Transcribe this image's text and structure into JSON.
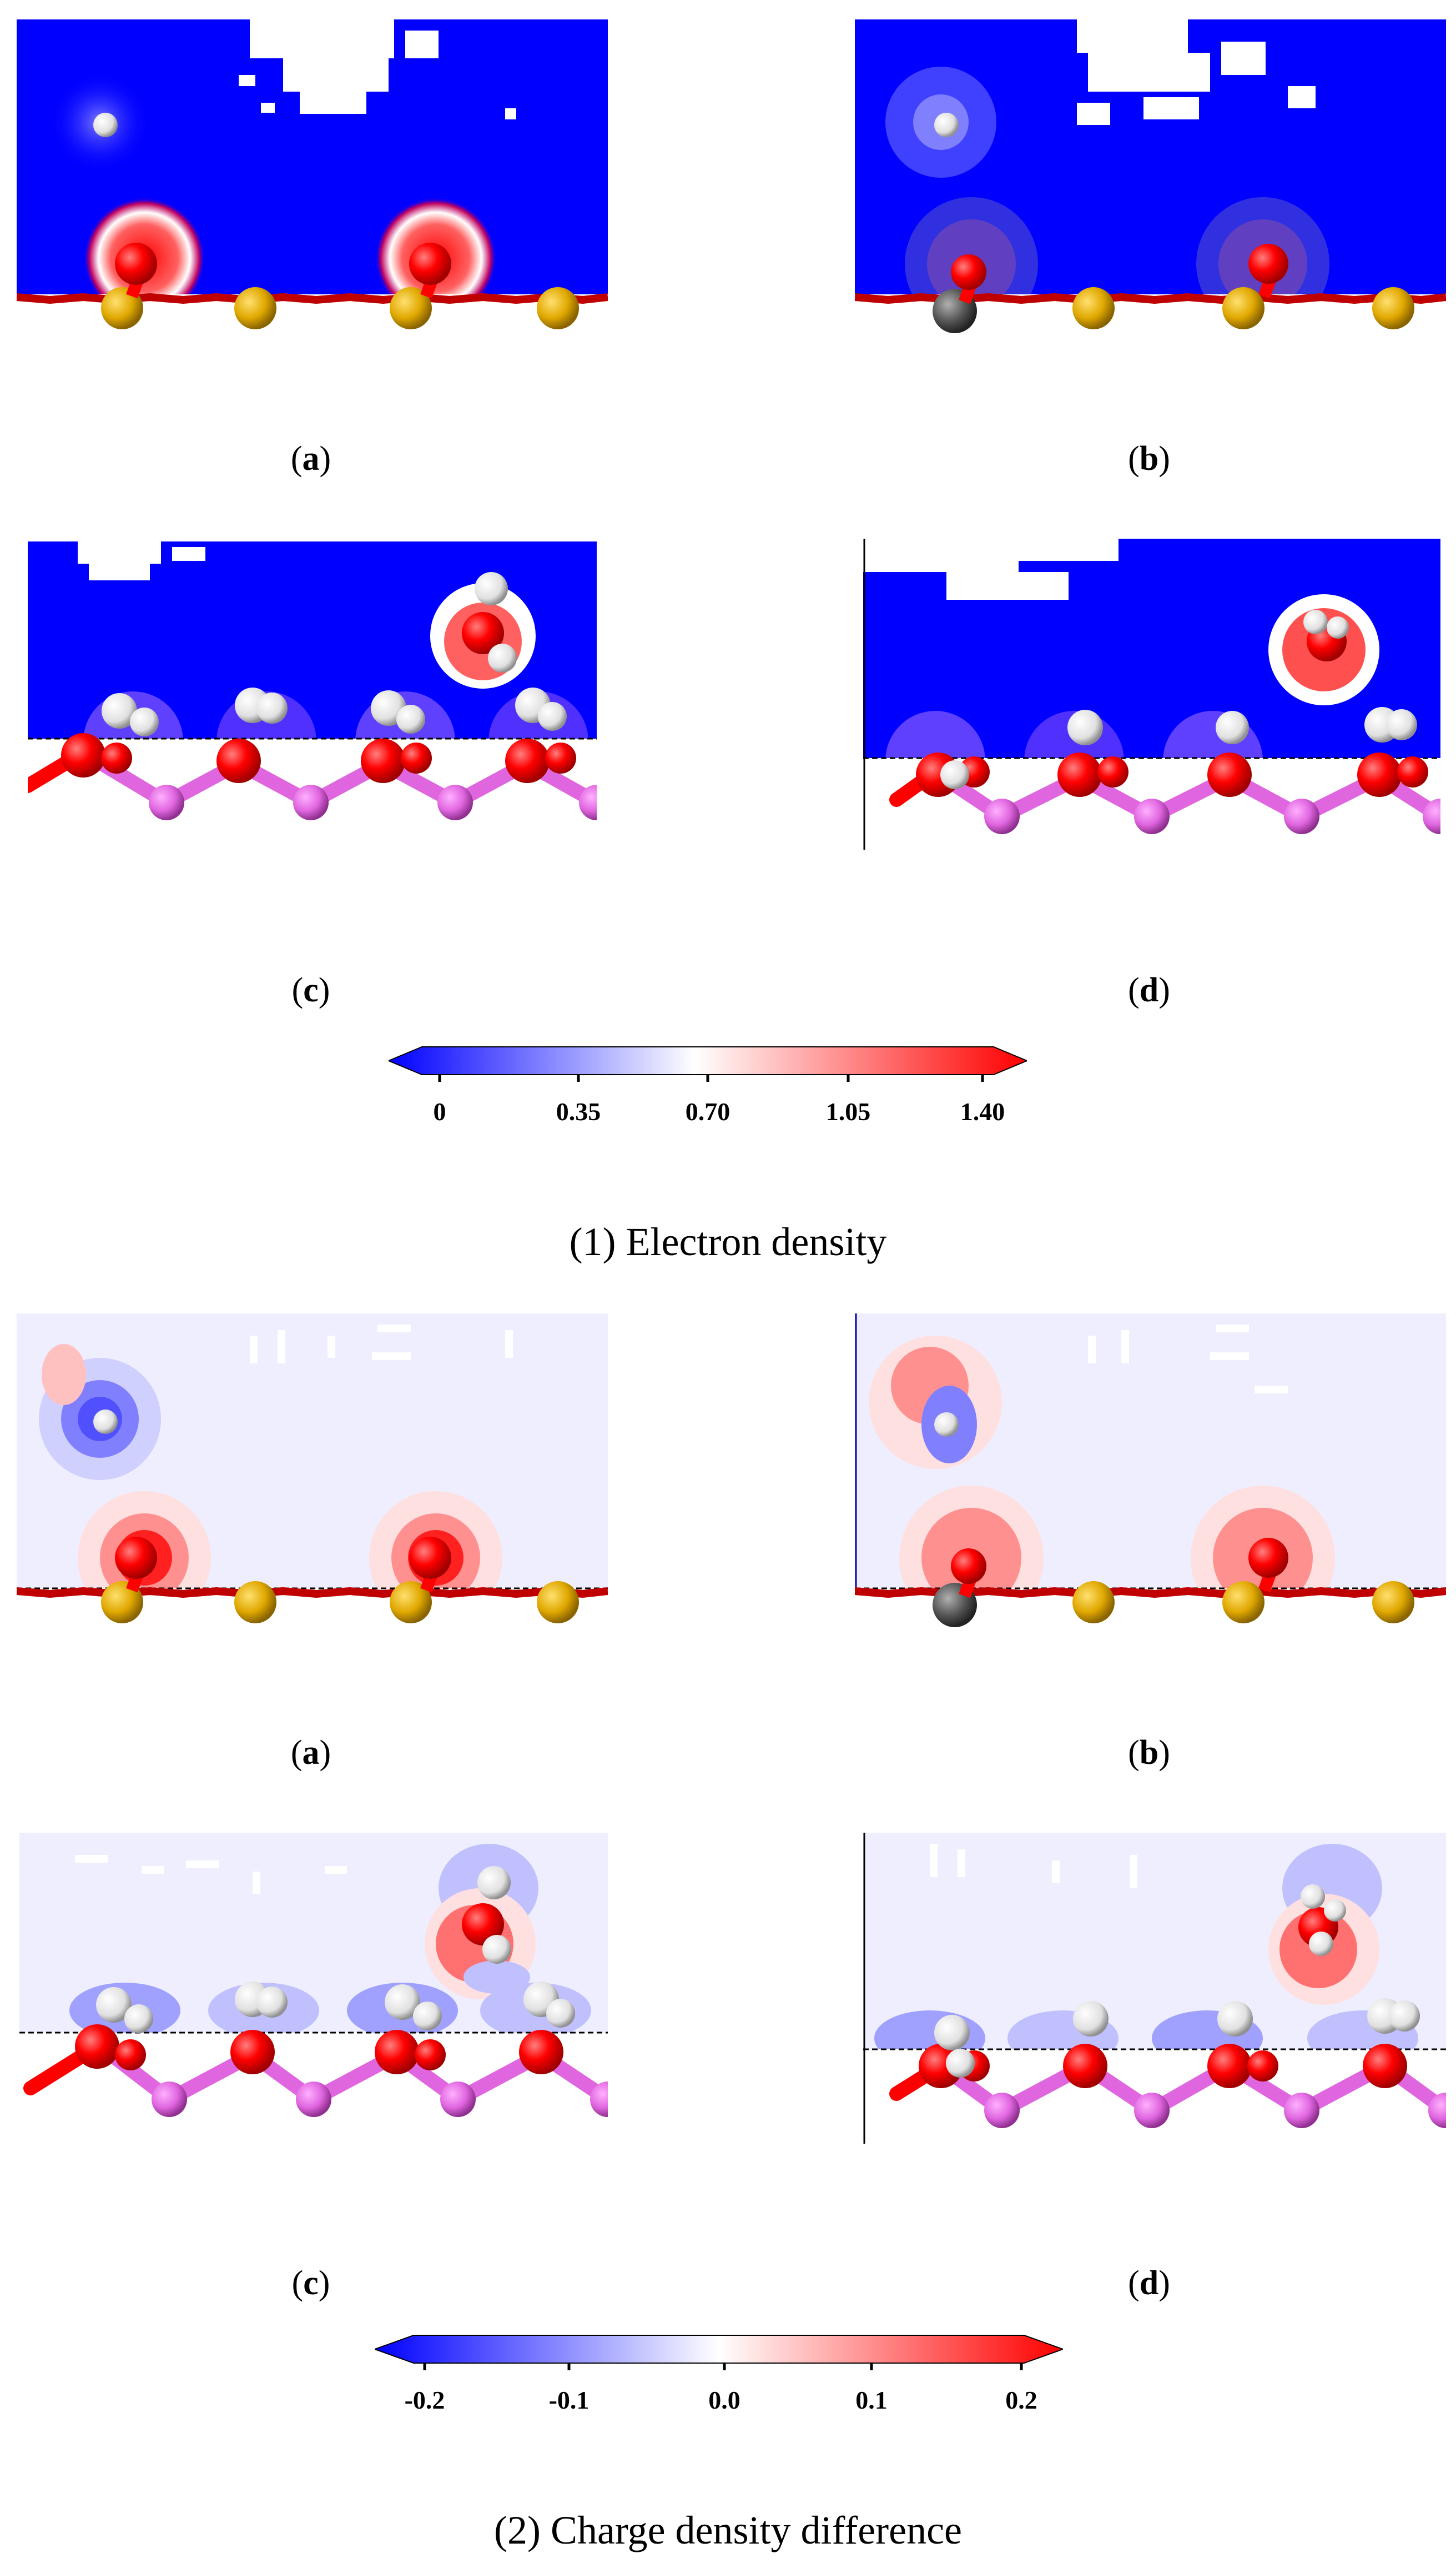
{
  "section1": {
    "caption": "(1) Electron density",
    "panels": [
      {
        "id": "a",
        "label": "a"
      },
      {
        "id": "b",
        "label": "b"
      },
      {
        "id": "c",
        "label": "c"
      },
      {
        "id": "d",
        "label": "d"
      }
    ],
    "colorbar": {
      "ticks": [
        "0",
        "0.35",
        "0.70",
        "1.05",
        "1.40"
      ],
      "min": 0,
      "max": 1.4,
      "low_color": "#0000ff",
      "mid_color": "#ffffff",
      "high_color": "#ff0000"
    }
  },
  "section2": {
    "caption": "(2) Charge density difference",
    "panels": [
      {
        "id": "a",
        "label": "a"
      },
      {
        "id": "b",
        "label": "b"
      },
      {
        "id": "c",
        "label": "c"
      },
      {
        "id": "d",
        "label": "d"
      }
    ],
    "colorbar": {
      "ticks": [
        "-0.2",
        "-0.1",
        "0.0",
        "0.1",
        "0.2"
      ],
      "min": -0.2,
      "max": 0.2,
      "low_color": "#0000ff",
      "mid_color": "#ffffff",
      "high_color": "#ff0000"
    }
  },
  "colors": {
    "oxygen": "#ff0000",
    "hydrogen": "#f4f4f4",
    "sulfur": "#e0a800",
    "phosphorus": "#e066e0",
    "carbon": "#555555",
    "density_bg": "#0000ff",
    "diff_bg": "#eeeeff"
  }
}
